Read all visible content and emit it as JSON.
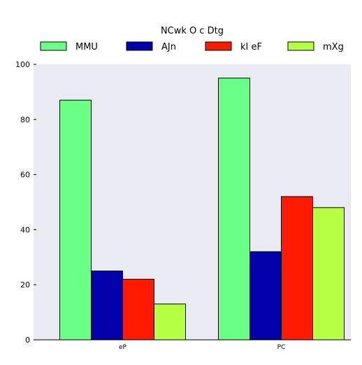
{
  "chart_data": {
    "type": "bar",
    "title": "",
    "xlabel": "",
    "ylabel": "",
    "categories": [
      "eP",
      "PC"
    ],
    "ylim": [
      0,
      100
    ],
    "yticks": [
      0,
      20,
      40,
      60,
      80,
      100
    ],
    "grid": false,
    "legend": {
      "title": "NCwk O c Dtg",
      "placement": "top",
      "columns": 4
    },
    "series": [
      {
        "name": "MMU",
        "color": "#6aff87",
        "values": [
          87,
          95
        ]
      },
      {
        "name": "AJn",
        "color": "#0000aa",
        "values": [
          25,
          32
        ]
      },
      {
        "name": "kI eF",
        "color": "#ff1a00",
        "values": [
          22,
          52
        ]
      },
      {
        "name": "mXg",
        "color": "#b5ff45",
        "values": [
          13,
          48
        ]
      }
    ],
    "plot_background": "#eaeaf2"
  }
}
